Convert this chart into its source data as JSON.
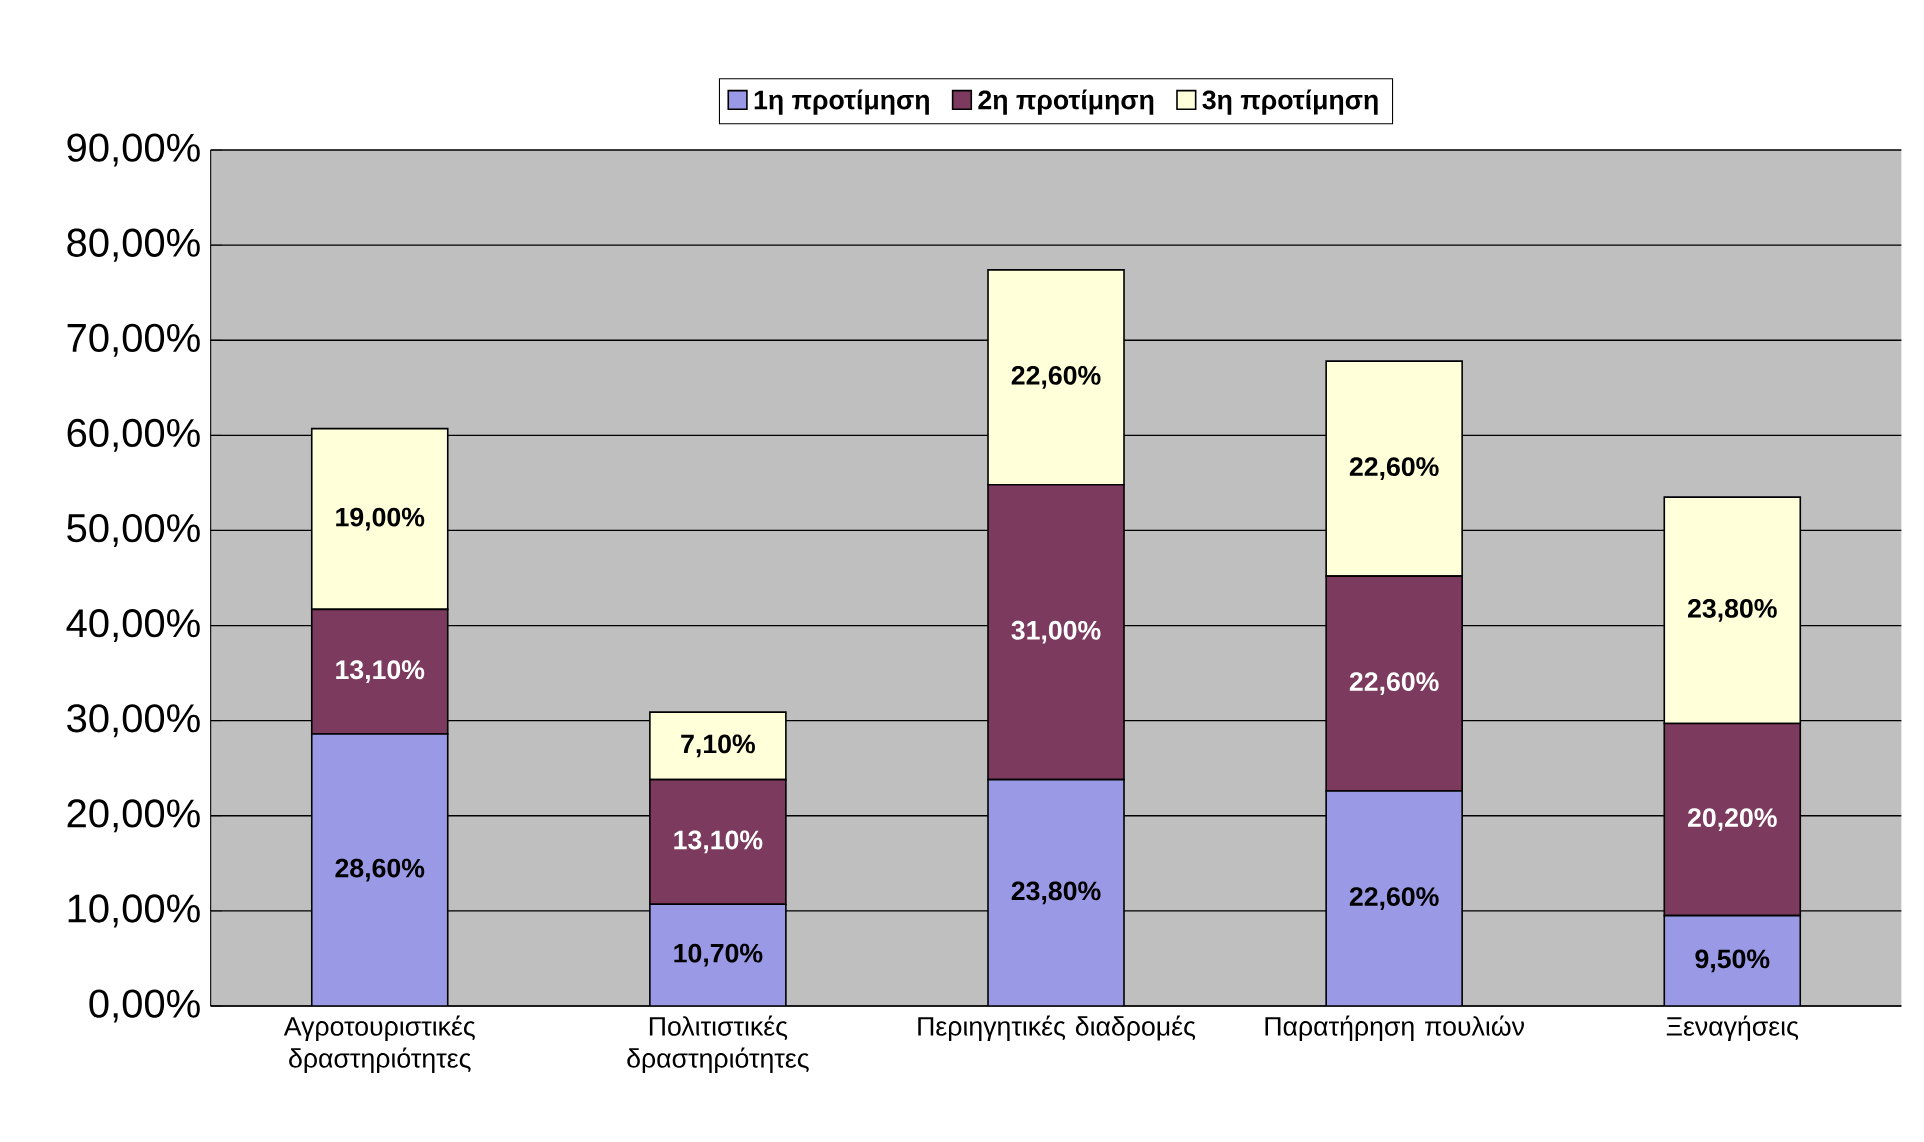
{
  "chart_data": {
    "type": "bar",
    "stacked": true,
    "categories": [
      "Αγροτουριστικές δραστηριότητες",
      "Πολιτιστικές δραστηριότητες",
      "Περιηγητικές διαδρομές",
      "Παρατήρηση πουλιών",
      "Ξεναγήσεις"
    ],
    "series": [
      {
        "name": "1η προτίμηση",
        "color": "#9999e6",
        "values": [
          28.6,
          10.7,
          23.8,
          22.6,
          9.5
        ],
        "value_labels": [
          "28,60%",
          "10,70%",
          "23,80%",
          "22,60%",
          "9,50%"
        ]
      },
      {
        "name": "2η προτίμηση",
        "color": "#7b3a5e",
        "values": [
          13.1,
          13.1,
          31.0,
          22.6,
          20.2
        ],
        "value_labels": [
          "13,10%",
          "13,10%",
          "31,00%",
          "22,60%",
          "20,20%"
        ]
      },
      {
        "name": "3η προτίμηση",
        "color": "#ffffd9",
        "values": [
          19.0,
          7.1,
          22.6,
          22.6,
          23.8
        ],
        "value_labels": [
          "19,00%",
          "7,10%",
          "22,60%",
          "22,60%",
          "23,80%"
        ]
      }
    ],
    "ylim": [
      0,
      90
    ],
    "yticks": [
      {
        "value": 0,
        "label": "0,00%"
      },
      {
        "value": 10,
        "label": "10,00%"
      },
      {
        "value": 20,
        "label": "20,00%"
      },
      {
        "value": 30,
        "label": "30,00%"
      },
      {
        "value": 40,
        "label": "40,00%"
      },
      {
        "value": 50,
        "label": "50,00%"
      },
      {
        "value": 60,
        "label": "60,00%"
      },
      {
        "value": 70,
        "label": "70,00%"
      },
      {
        "value": 80,
        "label": "80,00%"
      },
      {
        "value": 90,
        "label": "90,00%"
      }
    ],
    "grid": "y",
    "legend": "top"
  }
}
